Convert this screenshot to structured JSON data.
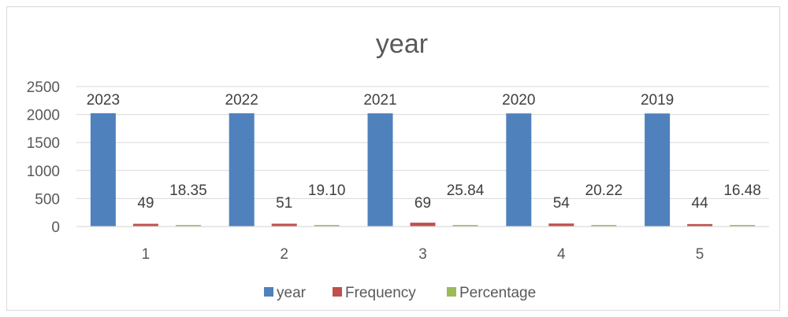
{
  "chart_data": {
    "type": "bar",
    "title": "year",
    "xlabel": "",
    "ylabel": "",
    "categories": [
      "1",
      "2",
      "3",
      "4",
      "5"
    ],
    "series": [
      {
        "name": "year",
        "color": "#4f81bd",
        "values": [
          2023,
          2022,
          2021,
          2020,
          2019
        ],
        "labels": [
          "2023",
          "2022",
          "2021",
          "2020",
          "2019"
        ]
      },
      {
        "name": "Frequency",
        "color": "#c0504d",
        "values": [
          49,
          51,
          69,
          54,
          44
        ],
        "labels": [
          "49",
          "51",
          "69",
          "54",
          "44"
        ]
      },
      {
        "name": "Percentage",
        "color": "#9bbb59",
        "values": [
          18.35,
          19.1,
          25.84,
          20.22,
          16.48
        ],
        "labels": [
          "18.35",
          "19.10",
          "25.84",
          "20.22",
          "16.48"
        ]
      }
    ],
    "ylim": [
      0,
      2500
    ],
    "yticks": [
      0,
      500,
      1000,
      1500,
      2000,
      2500
    ],
    "grid": true,
    "legend_position": "bottom"
  }
}
